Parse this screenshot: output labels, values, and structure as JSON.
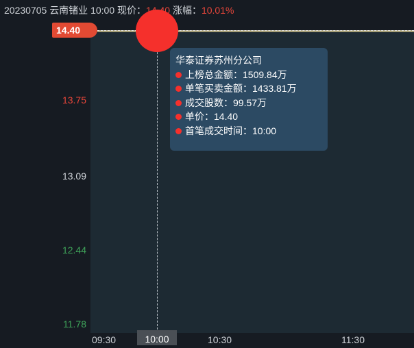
{
  "header": {
    "date": "20230705",
    "name": "云南锗业",
    "time": "10:00",
    "price_label": "现价：",
    "price": "14.40",
    "change_label": "涨幅：",
    "change": "10.01%"
  },
  "y_axis": [
    {
      "v": "14.40",
      "c": "#ffffff"
    },
    {
      "v": "13.75",
      "c": "#e8463a"
    },
    {
      "v": "13.09",
      "c": "#cfd3d8"
    },
    {
      "v": "12.44",
      "c": "#3fa45a"
    },
    {
      "v": "11.78",
      "c": "#3fa45a"
    }
  ],
  "x_axis": [
    "09:30",
    "10:30",
    "11:30"
  ],
  "x_selected": "10:00",
  "tooltip": {
    "title": "华泰证券苏州分公司",
    "rows": [
      "上榜总金额：1509.84万",
      "单笔买卖金额：1433.81万",
      "成交股数：99.57万",
      "单价：14.40",
      "首笔成交时间：10:00"
    ]
  },
  "colors": {
    "up": "#e8463a",
    "down": "#3fa45a",
    "marker": "#f5302c"
  }
}
